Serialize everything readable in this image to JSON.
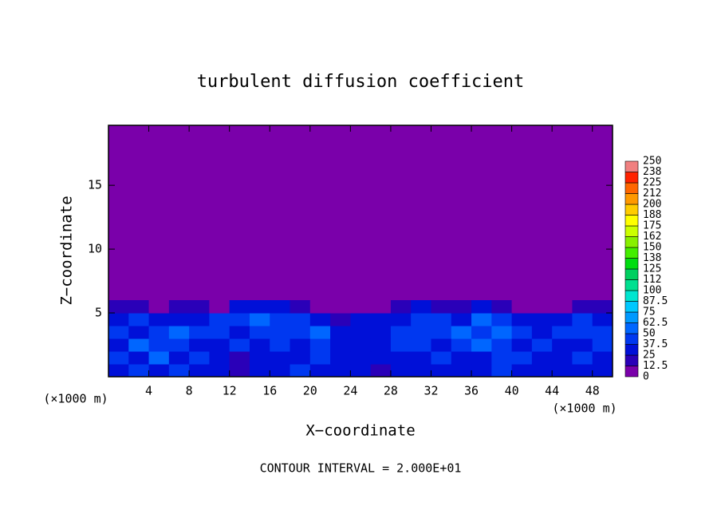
{
  "chart_data": {
    "type": "heatmap",
    "title": "turbulent diffusion coefficient",
    "x_label": "X−coordinate",
    "y_label": "Z−coordinate",
    "x_unit": "(×1000 m)",
    "annotation": "CONTOUR INTERVAL = 2.000E+01",
    "xlim": [
      0,
      50
    ],
    "ylim": [
      0,
      19.7
    ],
    "xticks": [
      4,
      8,
      12,
      16,
      20,
      24,
      28,
      32,
      36,
      40,
      44,
      48
    ],
    "yticks": [
      5,
      10,
      15
    ],
    "x_bins": [
      0,
      2,
      4,
      6,
      8,
      10,
      12,
      14,
      16,
      18,
      20,
      22,
      24,
      26,
      28,
      30,
      32,
      34,
      36,
      38,
      40,
      42,
      44,
      46,
      48,
      50
    ],
    "y_bins": [
      0,
      1,
      2,
      3,
      4,
      5,
      6
    ],
    "values": [
      [
        30,
        45,
        25,
        40,
        30,
        35,
        20,
        25,
        30,
        40,
        25,
        30,
        25,
        20,
        25,
        30,
        35,
        25,
        30,
        40,
        35,
        25,
        30,
        35,
        30
      ],
      [
        40,
        30,
        50,
        35,
        45,
        25,
        20,
        30,
        35,
        30,
        40,
        35,
        25,
        30,
        30,
        35,
        40,
        30,
        35,
        45,
        40,
        35,
        30,
        40,
        35
      ],
      [
        35,
        50,
        40,
        45,
        30,
        35,
        40,
        30,
        40,
        35,
        45,
        30,
        35,
        25,
        40,
        45,
        35,
        40,
        50,
        40,
        35,
        40,
        35,
        30,
        40
      ],
      [
        45,
        35,
        45,
        50,
        40,
        45,
        35,
        40,
        45,
        40,
        50,
        35,
        30,
        35,
        45,
        40,
        45,
        50,
        45,
        55,
        40,
        35,
        45,
        40,
        45
      ],
      [
        30,
        40,
        35,
        30,
        35,
        40,
        45,
        60,
        40,
        45,
        35,
        20,
        25,
        30,
        35,
        45,
        40,
        30,
        50,
        45,
        30,
        25,
        35,
        40,
        30
      ],
      [
        15,
        20,
        10,
        15,
        20,
        10,
        25,
        30,
        35,
        20,
        10,
        5,
        5,
        10,
        20,
        25,
        15,
        20,
        25,
        15,
        10,
        5,
        10,
        15,
        20
      ]
    ],
    "levels": [
      0,
      12.5,
      25,
      37.5,
      50,
      62.5,
      75,
      87.5,
      100,
      {
        "value": 112.5,
        "label": "112"
      },
      125,
      {
        "value": 137.5,
        "label": "138"
      },
      150,
      {
        "value": 162.5,
        "label": "162"
      },
      175,
      {
        "value": 187.5,
        "label": "188"
      },
      200,
      {
        "value": 212.5,
        "label": "212"
      },
      225,
      {
        "value": 237.5,
        "label": "238"
      },
      250
    ],
    "colors": [
      "#7a00aa",
      "#2a00b8",
      "#0010d8",
      "#0038f0",
      "#0066ff",
      "#0099ff",
      "#00c8ff",
      "#00e6d0",
      "#00e090",
      "#00d060",
      "#00dd10",
      "#44ee00",
      "#88f000",
      "#ccff00",
      "#ffff00",
      "#ffcc00",
      "#ff9900",
      "#ff6600",
      "#ff2200",
      "#f08080"
    ]
  }
}
